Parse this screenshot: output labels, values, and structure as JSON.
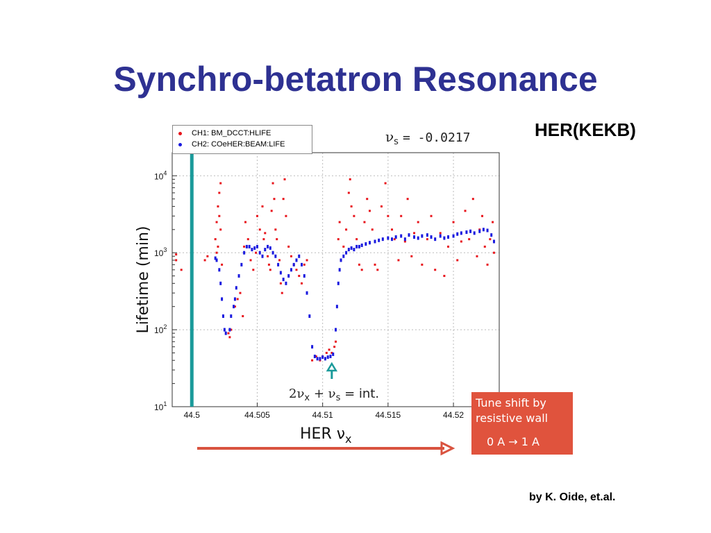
{
  "slide": {
    "title": "Synchro-betatron Resonance",
    "machine_label": "HER(KEKB)",
    "credit": "by K. Oide, et.al."
  },
  "chart_data": {
    "type": "scatter",
    "xlabel": "HER ν",
    "xlabel_sub": "x",
    "ylabel": "Lifetime (min)",
    "xlim": [
      44.4985,
      44.5235
    ],
    "ylim_log10": [
      1,
      4.3
    ],
    "y_scale": "log",
    "x_ticks": [
      44.5,
      44.505,
      44.51,
      44.515,
      44.52
    ],
    "x_tick_labels": [
      "44.5",
      "44.505",
      "44.51",
      "44.515",
      "44.52"
    ],
    "y_ticks": [
      10,
      100,
      1000,
      10000
    ],
    "y_tick_base": "10",
    "y_tick_exponents": [
      "1",
      "2",
      "3",
      "4"
    ],
    "grid": true,
    "legend_position": "top-left",
    "nu_s_label": "ν",
    "nu_s_sub": "s",
    "nu_s_value": "= -0.0217",
    "resonance_label_prefix": "2ν",
    "resonance_label_sub1": "x",
    "resonance_label_mid": " + ν",
    "resonance_label_sub2": "s",
    "resonance_label_suffix": " = int.",
    "resonance_marker_x": 44.5107,
    "vertical_line_x": 44.5,
    "series": [
      {
        "name": "CH1: BM_DCCT:HLIFE",
        "color": "#e8141b",
        "points": [
          [
            44.4988,
            800
          ],
          [
            44.4988,
            950
          ],
          [
            44.4992,
            600
          ],
          [
            44.501,
            800
          ],
          [
            44.5012,
            900
          ],
          [
            44.5018,
            1500
          ],
          [
            44.5019,
            2500
          ],
          [
            44.502,
            4000
          ],
          [
            44.5021,
            6000
          ],
          [
            44.5022,
            8000
          ],
          [
            44.5019,
            1000
          ],
          [
            44.502,
            1200
          ],
          [
            44.5021,
            3000
          ],
          [
            44.5022,
            2000
          ],
          [
            44.5023,
            700
          ],
          [
            44.5028,
            90
          ],
          [
            44.5029,
            80
          ],
          [
            44.503,
            100
          ],
          [
            44.5033,
            200
          ],
          [
            44.5035,
            250
          ],
          [
            44.5037,
            300
          ],
          [
            44.5039,
            150
          ],
          [
            44.504,
            1200
          ],
          [
            44.5041,
            2500
          ],
          [
            44.5043,
            1500
          ],
          [
            44.5045,
            800
          ],
          [
            44.5047,
            600
          ],
          [
            44.5049,
            1000
          ],
          [
            44.505,
            3000
          ],
          [
            44.5052,
            2000
          ],
          [
            44.5054,
            4000
          ],
          [
            44.5055,
            1500
          ],
          [
            44.5056,
            1800
          ],
          [
            44.5058,
            900
          ],
          [
            44.5059,
            700
          ],
          [
            44.506,
            600
          ],
          [
            44.5061,
            3500
          ],
          [
            44.5062,
            8000
          ],
          [
            44.5063,
            5000
          ],
          [
            44.5064,
            2000
          ],
          [
            44.5065,
            1500
          ],
          [
            44.5067,
            800
          ],
          [
            44.5068,
            400
          ],
          [
            44.5069,
            300
          ],
          [
            44.507,
            5000
          ],
          [
            44.5071,
            9000
          ],
          [
            44.5072,
            3000
          ],
          [
            44.5074,
            1200
          ],
          [
            44.5076,
            900
          ],
          [
            44.5078,
            700
          ],
          [
            44.508,
            600
          ],
          [
            44.5082,
            500
          ],
          [
            44.5084,
            400
          ],
          [
            44.5086,
            700
          ],
          [
            44.5088,
            800
          ],
          [
            44.5092,
            40
          ],
          [
            44.5095,
            45
          ],
          [
            44.5098,
            40
          ],
          [
            44.51,
            45
          ],
          [
            44.5103,
            50
          ],
          [
            44.5105,
            55
          ],
          [
            44.5107,
            50
          ],
          [
            44.5109,
            60
          ],
          [
            44.511,
            70
          ],
          [
            44.5112,
            1500
          ],
          [
            44.5113,
            2500
          ],
          [
            44.5114,
            800
          ],
          [
            44.5116,
            1200
          ],
          [
            44.5118,
            2000
          ],
          [
            44.512,
            6000
          ],
          [
            44.5121,
            9000
          ],
          [
            44.5122,
            4000
          ],
          [
            44.5124,
            3000
          ],
          [
            44.5126,
            1500
          ],
          [
            44.5128,
            700
          ],
          [
            44.513,
            600
          ],
          [
            44.5132,
            2500
          ],
          [
            44.5134,
            5000
          ],
          [
            44.5136,
            3500
          ],
          [
            44.5138,
            2000
          ],
          [
            44.514,
            700
          ],
          [
            44.5142,
            600
          ],
          [
            44.5145,
            4000
          ],
          [
            44.5148,
            8000
          ],
          [
            44.515,
            3000
          ],
          [
            44.5153,
            2000
          ],
          [
            44.5155,
            1500
          ],
          [
            44.5158,
            800
          ],
          [
            44.516,
            3000
          ],
          [
            44.5163,
            1400
          ],
          [
            44.5165,
            5000
          ],
          [
            44.5168,
            900
          ],
          [
            44.517,
            1800
          ],
          [
            44.5173,
            2500
          ],
          [
            44.5176,
            700
          ],
          [
            44.518,
            1500
          ],
          [
            44.5183,
            3000
          ],
          [
            44.5186,
            600
          ],
          [
            44.519,
            1800
          ],
          [
            44.5193,
            500
          ],
          [
            44.5196,
            1200
          ],
          [
            44.52,
            2500
          ],
          [
            44.5203,
            800
          ],
          [
            44.5206,
            1400
          ],
          [
            44.5209,
            3500
          ],
          [
            44.5212,
            1500
          ],
          [
            44.5215,
            5000
          ],
          [
            44.5218,
            900
          ],
          [
            44.522,
            2000
          ],
          [
            44.5222,
            3000
          ],
          [
            44.5224,
            1200
          ],
          [
            44.5226,
            700
          ],
          [
            44.5228,
            1500
          ],
          [
            44.523,
            2500
          ],
          [
            44.5231,
            1000
          ]
        ]
      },
      {
        "name": "CH2: COeHER:BEAM:LIFE",
        "color": "#1a1adf",
        "points": [
          [
            44.5018,
            850
          ],
          [
            44.5019,
            800
          ],
          [
            44.5021,
            600
          ],
          [
            44.5022,
            400
          ],
          [
            44.5023,
            250
          ],
          [
            44.5024,
            150
          ],
          [
            44.5025,
            100
          ],
          [
            44.5026,
            90
          ],
          [
            44.5029,
            100
          ],
          [
            44.503,
            150
          ],
          [
            44.5032,
            200
          ],
          [
            44.5033,
            250
          ],
          [
            44.5034,
            350
          ],
          [
            44.5036,
            500
          ],
          [
            44.5038,
            700
          ],
          [
            44.504,
            1000
          ],
          [
            44.5042,
            1200
          ],
          [
            44.5044,
            1200
          ],
          [
            44.5046,
            1100
          ],
          [
            44.5048,
            1150
          ],
          [
            44.505,
            1200
          ],
          [
            44.5052,
            1000
          ],
          [
            44.5054,
            900
          ],
          [
            44.5056,
            1100
          ],
          [
            44.5058,
            1200
          ],
          [
            44.506,
            1150
          ],
          [
            44.5062,
            1000
          ],
          [
            44.5064,
            900
          ],
          [
            44.5066,
            700
          ],
          [
            44.5068,
            550
          ],
          [
            44.507,
            450
          ],
          [
            44.5072,
            400
          ],
          [
            44.5074,
            500
          ],
          [
            44.5076,
            600
          ],
          [
            44.5078,
            700
          ],
          [
            44.508,
            800
          ],
          [
            44.5082,
            900
          ],
          [
            44.5084,
            700
          ],
          [
            44.5086,
            500
          ],
          [
            44.5088,
            300
          ],
          [
            44.509,
            150
          ],
          [
            44.5092,
            60
          ],
          [
            44.5094,
            45
          ],
          [
            44.5096,
            42
          ],
          [
            44.5098,
            42
          ],
          [
            44.51,
            44
          ],
          [
            44.5102,
            42
          ],
          [
            44.5104,
            44
          ],
          [
            44.5106,
            45
          ],
          [
            44.5108,
            48
          ],
          [
            44.511,
            100
          ],
          [
            44.5111,
            200
          ],
          [
            44.5112,
            400
          ],
          [
            44.5113,
            600
          ],
          [
            44.5114,
            800
          ],
          [
            44.5116,
            900
          ],
          [
            44.5118,
            1000
          ],
          [
            44.512,
            1100
          ],
          [
            44.5122,
            1150
          ],
          [
            44.5124,
            1100
          ],
          [
            44.5126,
            1200
          ],
          [
            44.5128,
            1200
          ],
          [
            44.513,
            1250
          ],
          [
            44.5133,
            1300
          ],
          [
            44.5136,
            1350
          ],
          [
            44.514,
            1400
          ],
          [
            44.5143,
            1450
          ],
          [
            44.5146,
            1500
          ],
          [
            44.515,
            1550
          ],
          [
            44.5153,
            1500
          ],
          [
            44.5156,
            1600
          ],
          [
            44.516,
            1650
          ],
          [
            44.5163,
            1500
          ],
          [
            44.5166,
            1700
          ],
          [
            44.517,
            1600
          ],
          [
            44.5173,
            1550
          ],
          [
            44.5176,
            1650
          ],
          [
            44.518,
            1700
          ],
          [
            44.5183,
            1600
          ],
          [
            44.5186,
            1500
          ],
          [
            44.519,
            1650
          ],
          [
            44.5193,
            1550
          ],
          [
            44.5196,
            1600
          ],
          [
            44.52,
            1650
          ],
          [
            44.5203,
            1750
          ],
          [
            44.5206,
            1800
          ],
          [
            44.521,
            1850
          ],
          [
            44.5213,
            1900
          ],
          [
            44.5216,
            1800
          ],
          [
            44.522,
            1900
          ],
          [
            44.5223,
            2000
          ],
          [
            44.5226,
            1950
          ],
          [
            44.5229,
            1700
          ],
          [
            44.5231,
            1400
          ]
        ]
      }
    ]
  },
  "annotation": {
    "line1": "Tune shift by",
    "line2": "resistive wall",
    "line3": "0 A → 1 A"
  },
  "colors": {
    "title": "#2e3192",
    "annotation_box": "#e0533d",
    "vertical_line": "#1a9a9a",
    "arrow": "#d9533f"
  }
}
